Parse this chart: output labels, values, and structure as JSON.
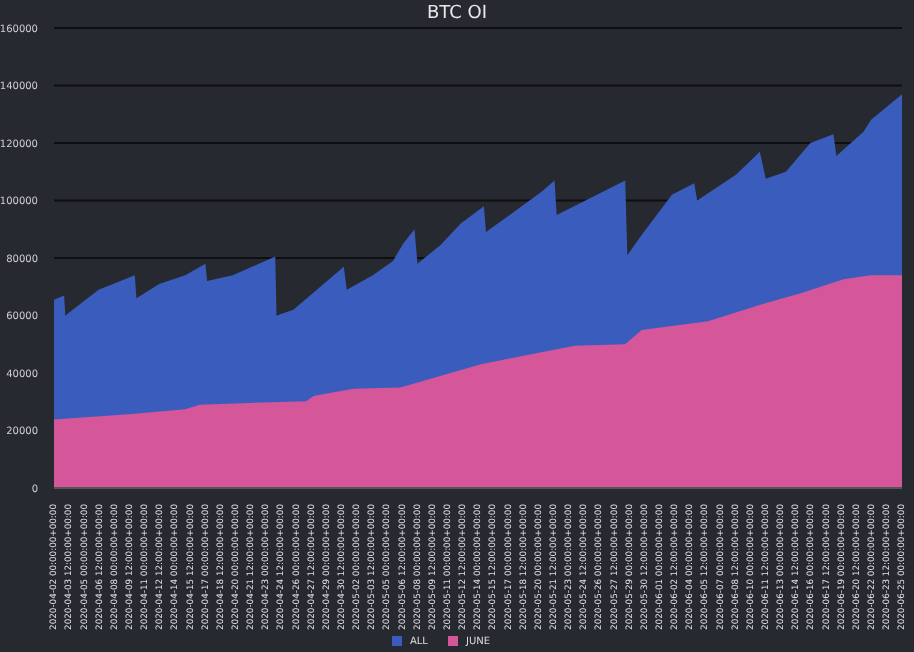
{
  "chart_data": {
    "type": "area",
    "title": "BTC OI",
    "legend": "bottom",
    "grid": "y",
    "ylim": [
      0,
      160000
    ],
    "yticks": [
      0,
      20000,
      40000,
      60000,
      80000,
      100000,
      120000,
      140000,
      160000
    ],
    "xlim": [
      "2020-04-02T00:00",
      "2020-06-25T00:00"
    ],
    "xticks": [
      {
        "value": "2020-04-02T00:00",
        "label": "2020-04-02 00:00:00+00:00"
      },
      {
        "value": "2020-04-03T12:00",
        "label": "2020-04-03 12:00:00+00:00"
      },
      {
        "value": "2020-04-05T00:00",
        "label": "2020-04-05 00:00:00+00:00"
      },
      {
        "value": "2020-04-06T12:00",
        "label": "2020-04-06 12:00:00+00:00"
      },
      {
        "value": "2020-04-08T00:00",
        "label": "2020-04-08 00:00:00+00:00"
      },
      {
        "value": "2020-04-09T12:00",
        "label": "2020-04-09 12:00:00+00:00"
      },
      {
        "value": "2020-04-11T00:00",
        "label": "2020-04-11 00:00:00+00:00"
      },
      {
        "value": "2020-04-12T12:00",
        "label": "2020-04-12 12:00:00+00:00"
      },
      {
        "value": "2020-04-14T00:00",
        "label": "2020-04-14 00:00:00+00:00"
      },
      {
        "value": "2020-04-15T12:00",
        "label": "2020-04-15 12:00:00+00:00"
      },
      {
        "value": "2020-04-17T00:00",
        "label": "2020-04-17 00:00:00+00:00"
      },
      {
        "value": "2020-04-18T12:00",
        "label": "2020-04-18 12:00:00+00:00"
      },
      {
        "value": "2020-04-20T00:00",
        "label": "2020-04-20 00:00:00+00:00"
      },
      {
        "value": "2020-04-21T12:00",
        "label": "2020-04-21 12:00:00+00:00"
      },
      {
        "value": "2020-04-23T00:00",
        "label": "2020-04-23 00:00:00+00:00"
      },
      {
        "value": "2020-04-24T12:00",
        "label": "2020-04-24 12:00:00+00:00"
      },
      {
        "value": "2020-04-26T00:00",
        "label": "2020-04-26 00:00:00+00:00"
      },
      {
        "value": "2020-04-27T12:00",
        "label": "2020-04-27 12:00:00+00:00"
      },
      {
        "value": "2020-04-29T00:00",
        "label": "2020-04-29 00:00:00+00:00"
      },
      {
        "value": "2020-04-30T12:00",
        "label": "2020-04-30 12:00:00+00:00"
      },
      {
        "value": "2020-05-02T00:00",
        "label": "2020-05-02 00:00:00+00:00"
      },
      {
        "value": "2020-05-03T12:00",
        "label": "2020-05-03 12:00:00+00:00"
      },
      {
        "value": "2020-05-05T00:00",
        "label": "2020-05-05 00:00:00+00:00"
      },
      {
        "value": "2020-05-06T12:00",
        "label": "2020-05-06 12:00:00+00:00"
      },
      {
        "value": "2020-05-08T00:00",
        "label": "2020-05-08 00:00:00+00:00"
      },
      {
        "value": "2020-05-09T12:00",
        "label": "2020-05-09 12:00:00+00:00"
      },
      {
        "value": "2020-05-11T00:00",
        "label": "2020-05-11 00:00:00+00:00"
      },
      {
        "value": "2020-05-12T12:00",
        "label": "2020-05-12 12:00:00+00:00"
      },
      {
        "value": "2020-05-14T00:00",
        "label": "2020-05-14 00:00:00+00:00"
      },
      {
        "value": "2020-05-15T12:00",
        "label": "2020-05-15 12:00:00+00:00"
      },
      {
        "value": "2020-05-17T00:00",
        "label": "2020-05-17 00:00:00+00:00"
      },
      {
        "value": "2020-05-18T12:00",
        "label": "2020-05-18 12:00:00+00:00"
      },
      {
        "value": "2020-05-20T00:00",
        "label": "2020-05-20 00:00:00+00:00"
      },
      {
        "value": "2020-05-21T12:00",
        "label": "2020-05-21 12:00:00+00:00"
      },
      {
        "value": "2020-05-23T00:00",
        "label": "2020-05-23 00:00:00+00:00"
      },
      {
        "value": "2020-05-24T12:00",
        "label": "2020-05-24 12:00:00+00:00"
      },
      {
        "value": "2020-05-26T00:00",
        "label": "2020-05-26 00:00:00+00:00"
      },
      {
        "value": "2020-05-27T12:00",
        "label": "2020-05-27 12:00:00+00:00"
      },
      {
        "value": "2020-05-29T00:00",
        "label": "2020-05-29 00:00:00+00:00"
      },
      {
        "value": "2020-05-30T12:00",
        "label": "2020-05-30 12:00:00+00:00"
      },
      {
        "value": "2020-06-01T00:00",
        "label": "2020-06-01 00:00:00+00:00"
      },
      {
        "value": "2020-06-02T12:00",
        "label": "2020-06-02 12:00:00+00:00"
      },
      {
        "value": "2020-06-04T00:00",
        "label": "2020-06-04 00:00:00+00:00"
      },
      {
        "value": "2020-06-05T12:00",
        "label": "2020-06-05 12:00:00+00:00"
      },
      {
        "value": "2020-06-07T00:00",
        "label": "2020-06-07 00:00:00+00:00"
      },
      {
        "value": "2020-06-08T12:00",
        "label": "2020-06-08 12:00:00+00:00"
      },
      {
        "value": "2020-06-10T00:00",
        "label": "2020-06-10 00:00:00+00:00"
      },
      {
        "value": "2020-06-11T12:00",
        "label": "2020-06-11 12:00:00+00:00"
      },
      {
        "value": "2020-06-13T00:00",
        "label": "2020-06-13 00:00:00+00:00"
      },
      {
        "value": "2020-06-14T12:00",
        "label": "2020-06-14 12:00:00+00:00"
      },
      {
        "value": "2020-06-16T00:00",
        "label": "2020-06-16 00:00:00+00:00"
      },
      {
        "value": "2020-06-17T12:00",
        "label": "2020-06-17 12:00:00+00:00"
      },
      {
        "value": "2020-06-19T00:00",
        "label": "2020-06-19 00:00:00+00:00"
      },
      {
        "value": "2020-06-20T12:00",
        "label": "2020-06-20 12:00:00+00:00"
      },
      {
        "value": "2020-06-22T00:00",
        "label": "2020-06-22 00:00:00+00:00"
      },
      {
        "value": "2020-06-23T12:00",
        "label": "2020-06-23 12:00:00+00:00"
      },
      {
        "value": "2020-06-25T00:00",
        "label": "2020-06-25 00:00:00+00:00"
      }
    ],
    "series": [
      {
        "name": "ALL",
        "color": "#3a5dbd",
        "x": [
          "2020-04-02T00:00",
          "2020-04-03T00:00",
          "2020-04-03T03:00",
          "2020-04-06T10:00",
          "2020-04-10T00:00",
          "2020-04-10T04:00",
          "2020-04-12T10:00",
          "2020-04-15T00:00",
          "2020-04-17T00:00",
          "2020-04-17T04:00",
          "2020-04-19T17:00",
          "2020-04-23T22:00",
          "2020-04-24T01:00",
          "2020-04-25T17:00",
          "2020-04-30T17:00",
          "2020-05-01T00:00",
          "2020-05-03T14:00",
          "2020-05-05T14:00",
          "2020-05-06T14:00",
          "2020-05-07T17:00",
          "2020-05-08T00:00",
          "2020-05-10T07:00",
          "2020-05-12T07:00",
          "2020-05-14T14:00",
          "2020-05-14T19:00",
          "2020-05-20T07:00",
          "2020-05-21T14:00",
          "2020-05-21T19:00",
          "2020-05-28T14:00",
          "2020-05-28T19:00",
          "2020-05-30T05:00",
          "2020-06-02T05:00",
          "2020-06-04T10:00",
          "2020-06-04T17:00",
          "2020-06-08T14:00",
          "2020-06-10T22:00",
          "2020-06-11T12:00",
          "2020-06-13T12:00",
          "2020-06-15T22:00",
          "2020-06-18T05:00",
          "2020-06-18T12:00",
          "2020-06-21T05:00",
          "2020-06-21T22:00",
          "2020-06-25T00:00"
        ],
        "values": [
          65500,
          67000,
          60000,
          69000,
          74000,
          66000,
          71000,
          74000,
          78000,
          72000,
          74000,
          80500,
          60000,
          62000,
          77000,
          69000,
          74000,
          79000,
          85000,
          90000,
          78000,
          84500,
          92000,
          98000,
          89000,
          103000,
          107000,
          95000,
          107000,
          81000,
          88000,
          102000,
          106000,
          100000,
          109000,
          117000,
          107600,
          110000,
          120000,
          123000,
          115500,
          124000,
          128000,
          137000
        ]
      },
      {
        "name": "JUNE",
        "color": "#d6569a",
        "x": [
          "2020-04-02T00:00",
          "2020-04-09T17:00",
          "2020-04-15T00:00",
          "2020-04-16T10:00",
          "2020-04-27T00:00",
          "2020-04-27T17:00",
          "2020-04-29T17:00",
          "2020-05-01T17:00",
          "2020-05-06T07:00",
          "2020-05-08T07:00",
          "2020-05-14T07:00",
          "2020-05-17T00:00",
          "2020-05-23T14:00",
          "2020-05-28T14:00",
          "2020-05-30T05:00",
          "2020-06-05T19:00",
          "2020-06-11T05:00",
          "2020-06-15T05:00",
          "2020-06-19T05:00",
          "2020-06-21T22:00",
          "2020-06-25T00:00"
        ],
        "values": [
          23800,
          25700,
          27400,
          29000,
          30200,
          32000,
          33300,
          34500,
          35000,
          37000,
          43000,
          45000,
          49500,
          50000,
          55000,
          58000,
          64000,
          68000,
          72600,
          74000,
          74000
        ]
      }
    ]
  }
}
